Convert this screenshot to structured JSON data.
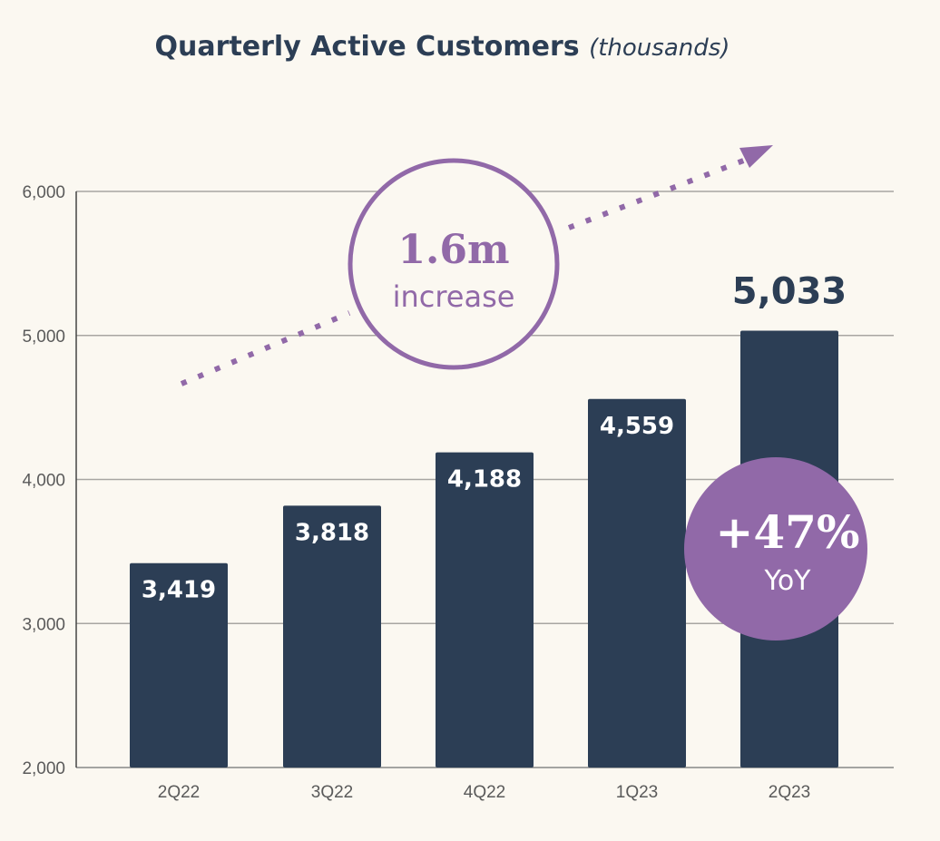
{
  "chart_data": {
    "type": "bar",
    "title": "Quarterly Active Customers",
    "subtitle": "(thousands)",
    "categories": [
      "2Q22",
      "3Q22",
      "4Q22",
      "1Q23",
      "2Q23"
    ],
    "values": [
      3419,
      3818,
      4188,
      4559,
      5033
    ],
    "data_labels": [
      "3,419",
      "3,818",
      "4,188",
      "4,559",
      "5,033"
    ],
    "ylim": [
      2000,
      6000
    ],
    "yticks": [
      2000,
      3000,
      4000,
      5000,
      6000
    ],
    "ytick_labels": [
      "2,000",
      "3,000",
      "4,000",
      "5,000",
      "6,000"
    ],
    "grid": true,
    "xlabel": "",
    "ylabel": "",
    "annotations": {
      "increase": {
        "value": "1.6m",
        "label": "increase"
      },
      "yoy": {
        "value": "+47%",
        "label": "YoY"
      }
    },
    "colors": {
      "bar": "#2c3e55",
      "accent": "#9169a8",
      "background": "#fbf8f1",
      "grid": "#a8a6a2"
    }
  }
}
